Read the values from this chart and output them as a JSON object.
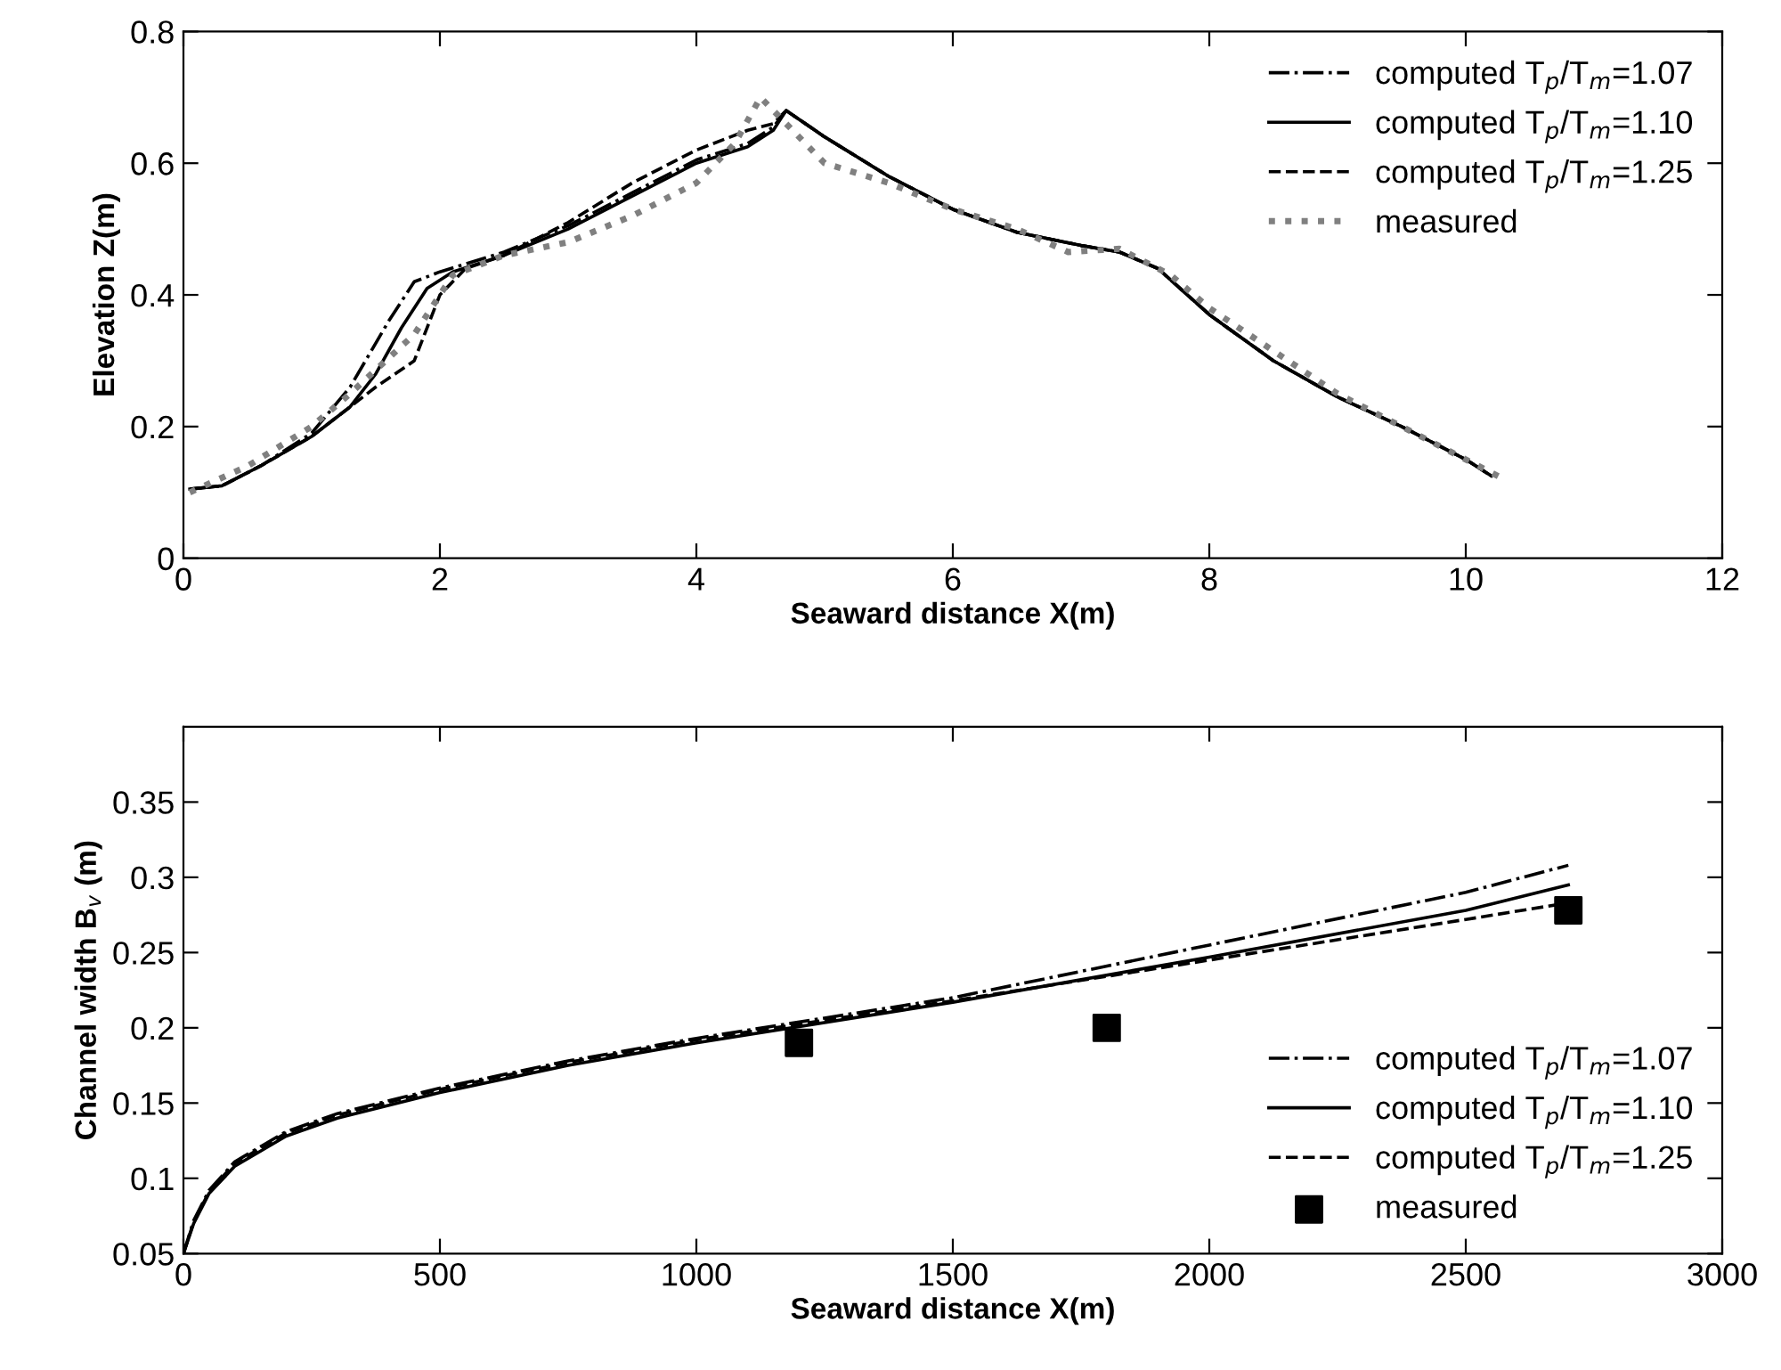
{
  "chart_data": [
    {
      "type": "line",
      "xlabel": "Seaward distance X(m)",
      "ylabel": "Elevation Z(m)",
      "xlim": [
        0,
        12
      ],
      "ylim": [
        0,
        0.8
      ],
      "xticks": [
        0,
        2,
        4,
        6,
        8,
        10,
        12
      ],
      "yticks": [
        0,
        0.2,
        0.4,
        0.6,
        0.8
      ],
      "grid": false,
      "legend": "top right",
      "series": [
        {
          "name": "computed T$_{p}$/T$_{m}$=1.07",
          "color": "#000000",
          "line_style": "dashdot",
          "x": [
            0.05,
            0.3,
            0.6,
            1.0,
            1.3,
            1.6,
            1.8,
            2.0,
            2.5,
            3.0,
            3.5,
            4.0,
            4.4,
            4.6,
            4.7,
            5.0,
            5.5,
            6.0,
            6.5,
            7.0,
            7.3,
            7.6,
            8.0,
            8.5,
            9.0,
            9.5,
            10.0,
            10.2
          ],
          "values": [
            0.105,
            0.11,
            0.14,
            0.19,
            0.26,
            0.36,
            0.42,
            0.435,
            0.465,
            0.505,
            0.555,
            0.605,
            0.63,
            0.655,
            0.68,
            0.64,
            0.58,
            0.53,
            0.495,
            0.475,
            0.465,
            0.44,
            0.37,
            0.3,
            0.245,
            0.2,
            0.15,
            0.125
          ]
        },
        {
          "name": "computed T$_{p}$/T$_{m}$=1.10",
          "color": "#000000",
          "line_style": "solid",
          "x": [
            0.05,
            0.3,
            0.6,
            1.0,
            1.3,
            1.5,
            1.7,
            1.9,
            2.1,
            2.5,
            3.0,
            3.5,
            4.0,
            4.4,
            4.6,
            4.7,
            5.0,
            5.5,
            6.0,
            6.5,
            7.0,
            7.3,
            7.6,
            8.0,
            8.5,
            9.0,
            9.5,
            10.0,
            10.2
          ],
          "values": [
            0.105,
            0.11,
            0.14,
            0.185,
            0.23,
            0.28,
            0.35,
            0.41,
            0.435,
            0.46,
            0.5,
            0.55,
            0.6,
            0.625,
            0.65,
            0.68,
            0.64,
            0.58,
            0.53,
            0.495,
            0.475,
            0.465,
            0.44,
            0.37,
            0.3,
            0.245,
            0.2,
            0.15,
            0.125
          ]
        },
        {
          "name": "computed T$_{p}$/T$_{m}$=1.25",
          "color": "#000000",
          "line_style": "dashed",
          "x": [
            0.05,
            0.3,
            0.6,
            1.0,
            1.3,
            1.5,
            1.8,
            2.0,
            2.2,
            2.5,
            3.0,
            3.5,
            4.0,
            4.4,
            4.6,
            4.7,
            5.0,
            5.5,
            6.0,
            6.5,
            7.0,
            7.3,
            7.6,
            8.0,
            8.5,
            9.0,
            9.5,
            10.0,
            10.2
          ],
          "values": [
            0.105,
            0.11,
            0.14,
            0.185,
            0.23,
            0.26,
            0.3,
            0.4,
            0.44,
            0.46,
            0.51,
            0.57,
            0.62,
            0.65,
            0.66,
            0.68,
            0.64,
            0.58,
            0.53,
            0.495,
            0.475,
            0.465,
            0.44,
            0.37,
            0.3,
            0.245,
            0.2,
            0.15,
            0.125
          ]
        },
        {
          "name": "measured",
          "color": "#808080",
          "line_style": "dotted",
          "x": [
            0.05,
            0.5,
            1.0,
            1.3,
            1.8,
            2.1,
            2.5,
            3.0,
            3.5,
            4.0,
            4.3,
            4.5,
            4.7,
            5.0,
            5.5,
            6.0,
            6.5,
            6.9,
            7.3,
            7.7,
            8.0,
            9.0,
            10.0,
            10.3
          ],
          "values": [
            0.1,
            0.14,
            0.2,
            0.25,
            0.34,
            0.43,
            0.46,
            0.48,
            0.52,
            0.57,
            0.63,
            0.7,
            0.66,
            0.6,
            0.57,
            0.53,
            0.5,
            0.465,
            0.47,
            0.43,
            0.38,
            0.25,
            0.15,
            0.12
          ]
        }
      ]
    },
    {
      "type": "line",
      "xlabel": "Seaward distance X(m)",
      "ylabel": "Channel width B$_{v}$ (m)",
      "xlim": [
        0,
        3000
      ],
      "ylim": [
        0.05,
        0.4
      ],
      "xticks": [
        0,
        500,
        1000,
        1500,
        2000,
        2500,
        3000
      ],
      "yticks": [
        0.05,
        0.1,
        0.15,
        0.2,
        0.25,
        0.3,
        0.35
      ],
      "grid": false,
      "legend": "lower right",
      "series": [
        {
          "name": "computed T$_{p}$/T$_{m}$=1.07",
          "color": "#000000",
          "line_style": "dashdot",
          "x": [
            0,
            20,
            50,
            100,
            200,
            300,
            500,
            750,
            1000,
            1500,
            2000,
            2500,
            2700
          ],
          "values": [
            0.05,
            0.072,
            0.092,
            0.111,
            0.131,
            0.143,
            0.16,
            0.178,
            0.193,
            0.22,
            0.255,
            0.29,
            0.308
          ]
        },
        {
          "name": "computed T$_{p}$/T$_{m}$=1.10",
          "color": "#000000",
          "line_style": "solid",
          "x": [
            0,
            20,
            50,
            100,
            200,
            300,
            500,
            750,
            1000,
            1500,
            2000,
            2500,
            2700
          ],
          "values": [
            0.05,
            0.07,
            0.09,
            0.108,
            0.128,
            0.14,
            0.157,
            0.175,
            0.19,
            0.217,
            0.247,
            0.278,
            0.295
          ]
        },
        {
          "name": "computed T$_{p}$/T$_{m}$=1.25",
          "color": "#000000",
          "line_style": "dashed",
          "x": [
            0,
            20,
            50,
            100,
            200,
            300,
            500,
            750,
            1000,
            1500,
            2000,
            2500,
            2700
          ],
          "values": [
            0.05,
            0.071,
            0.091,
            0.11,
            0.13,
            0.142,
            0.159,
            0.177,
            0.192,
            0.218,
            0.245,
            0.272,
            0.283
          ]
        },
        {
          "name": "measured",
          "type": "scatter",
          "marker": "square",
          "color": "#000000",
          "x": [
            1200,
            1800,
            2700
          ],
          "values": [
            0.19,
            0.2,
            0.278
          ]
        }
      ]
    }
  ]
}
